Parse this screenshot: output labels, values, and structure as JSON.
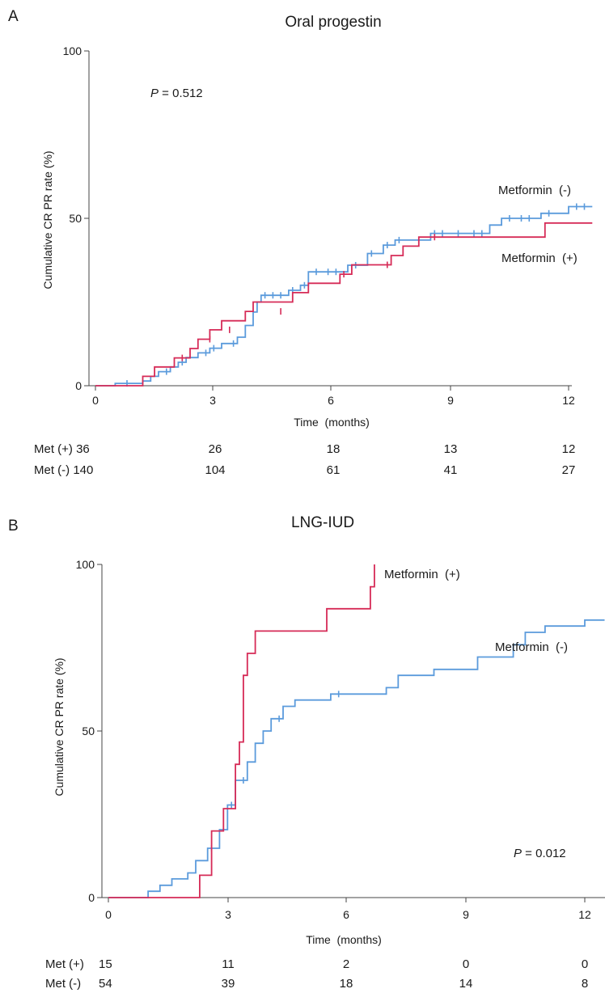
{
  "chart_data": [
    {
      "panel": "A",
      "type": "line",
      "title": "Oral progestin",
      "xlabel": "Time  (months)",
      "ylabel": "Cumulative CR PR rate (%)",
      "xlim": [
        0,
        12.6
      ],
      "ylim": [
        0,
        100
      ],
      "x_ticks": [
        "0",
        "3",
        "6",
        "9",
        "12"
      ],
      "y_ticks": [
        "0",
        "50",
        "100"
      ],
      "p_value": {
        "label": "P",
        "text": " = 0.512"
      },
      "series": [
        {
          "name": "Metformin (-)",
          "color": "#5b9bdc",
          "step": [
            [
              0,
              0
            ],
            [
              0.5,
              0
            ],
            [
              0.5,
              0.7
            ],
            [
              1.2,
              0.7
            ],
            [
              1.2,
              1.4
            ],
            [
              1.4,
              1.4
            ],
            [
              1.4,
              2.8
            ],
            [
              1.6,
              2.8
            ],
            [
              1.6,
              4.2
            ],
            [
              1.9,
              4.2
            ],
            [
              1.9,
              5.6
            ],
            [
              2.1,
              5.6
            ],
            [
              2.1,
              7
            ],
            [
              2.3,
              7
            ],
            [
              2.3,
              8.4
            ],
            [
              2.6,
              8.4
            ],
            [
              2.6,
              9.8
            ],
            [
              2.9,
              9.8
            ],
            [
              2.9,
              11.2
            ],
            [
              3.2,
              11.2
            ],
            [
              3.2,
              12.6
            ],
            [
              3.6,
              12.6
            ],
            [
              3.6,
              14.5
            ],
            [
              3.8,
              14.5
            ],
            [
              3.8,
              18
            ],
            [
              4.0,
              18
            ],
            [
              4.0,
              22
            ],
            [
              4.1,
              22
            ],
            [
              4.1,
              25
            ],
            [
              4.2,
              25
            ],
            [
              4.2,
              27
            ],
            [
              4.9,
              27
            ],
            [
              4.9,
              28.5
            ],
            [
              5.2,
              28.5
            ],
            [
              5.2,
              30
            ],
            [
              5.4,
              30
            ],
            [
              5.4,
              34
            ],
            [
              6.4,
              34
            ],
            [
              6.4,
              36
            ],
            [
              6.9,
              36
            ],
            [
              6.9,
              39.5
            ],
            [
              7.3,
              39.5
            ],
            [
              7.3,
              42
            ],
            [
              7.6,
              42
            ],
            [
              7.6,
              43.5
            ],
            [
              8.5,
              43.5
            ],
            [
              8.5,
              45.5
            ],
            [
              10.0,
              45.5
            ],
            [
              10.0,
              48
            ],
            [
              10.3,
              48
            ],
            [
              10.3,
              50
            ],
            [
              11.3,
              50
            ],
            [
              11.3,
              51.5
            ],
            [
              12.0,
              51.5
            ],
            [
              12.0,
              53.5
            ],
            [
              12.6,
              53.5
            ]
          ],
          "censored": [
            [
              0.8,
              0.7
            ],
            [
              1.8,
              4.2
            ],
            [
              2.2,
              7
            ],
            [
              2.8,
              9.8
            ],
            [
              3.0,
              11.2
            ],
            [
              3.5,
              12.6
            ],
            [
              4.3,
              27
            ],
            [
              4.5,
              27
            ],
            [
              4.7,
              27
            ],
            [
              5.0,
              28.5
            ],
            [
              5.3,
              30
            ],
            [
              5.6,
              34
            ],
            [
              5.9,
              34
            ],
            [
              6.1,
              34
            ],
            [
              6.6,
              36
            ],
            [
              7.0,
              39.5
            ],
            [
              7.4,
              42
            ],
            [
              7.7,
              43.5
            ],
            [
              8.6,
              45.5
            ],
            [
              8.8,
              45.5
            ],
            [
              9.2,
              45.5
            ],
            [
              9.6,
              45.5
            ],
            [
              9.8,
              45.5
            ],
            [
              10.5,
              50
            ],
            [
              10.8,
              50
            ],
            [
              11.0,
              50
            ],
            [
              11.5,
              51.5
            ],
            [
              12.2,
              53.5
            ],
            [
              12.4,
              53.5
            ]
          ]
        },
        {
          "name": "Metformin (+)",
          "color": "#d62b57",
          "step": [
            [
              0,
              0
            ],
            [
              1.2,
              0
            ],
            [
              1.2,
              2.8
            ],
            [
              1.5,
              2.8
            ],
            [
              1.5,
              5.6
            ],
            [
              2.0,
              5.6
            ],
            [
              2.0,
              8.3
            ],
            [
              2.4,
              8.3
            ],
            [
              2.4,
              11.1
            ],
            [
              2.6,
              11.1
            ],
            [
              2.6,
              13.9
            ],
            [
              2.9,
              13.9
            ],
            [
              2.9,
              16.7
            ],
            [
              3.2,
              16.7
            ],
            [
              3.2,
              19.4
            ],
            [
              3.8,
              19.4
            ],
            [
              3.8,
              22.2
            ],
            [
              4.0,
              22.2
            ],
            [
              4.0,
              25
            ],
            [
              5.0,
              25
            ],
            [
              5.0,
              27.8
            ],
            [
              5.4,
              27.8
            ],
            [
              5.4,
              30.6
            ],
            [
              6.2,
              30.6
            ],
            [
              6.2,
              33.3
            ],
            [
              6.5,
              33.3
            ],
            [
              6.5,
              36.1
            ],
            [
              7.5,
              36.1
            ],
            [
              7.5,
              38.9
            ],
            [
              7.8,
              38.9
            ],
            [
              7.8,
              41.7
            ],
            [
              8.2,
              41.7
            ],
            [
              8.2,
              44.4
            ],
            [
              11.4,
              44.4
            ],
            [
              11.4,
              48.6
            ],
            [
              12.6,
              48.6
            ]
          ],
          "censored": [
            [
              2.2,
              8.3
            ],
            [
              2.9,
              13.9
            ],
            [
              3.4,
              16.7
            ],
            [
              4.7,
              22.2
            ],
            [
              6.3,
              33.3
            ],
            [
              7.4,
              36.1
            ],
            [
              8.6,
              44.4
            ]
          ]
        }
      ],
      "series_labels": [
        "Metformin  (-)",
        "Metformin  (+)"
      ],
      "risk_table": [
        {
          "label": "Met (+) 36",
          "values": [
            "26",
            "18",
            "13",
            "12"
          ]
        },
        {
          "label": "Met (-) 140",
          "values": [
            "104",
            "61",
            "41",
            "27"
          ]
        }
      ]
    },
    {
      "panel": "B",
      "type": "line",
      "title": "LNG-IUD",
      "xlabel": "Time  (months)",
      "ylabel": "Cumulative CR PR rate (%)",
      "xlim": [
        0,
        12.5
      ],
      "ylim": [
        0,
        100
      ],
      "x_ticks": [
        "0",
        "3",
        "6",
        "9",
        "12"
      ],
      "y_ticks": [
        "0",
        "50",
        "100"
      ],
      "p_value": {
        "label": "P",
        "text": " = 0.012"
      },
      "series": [
        {
          "name": "Metformin (-)",
          "color": "#5b9bdc",
          "step": [
            [
              0,
              0
            ],
            [
              1.0,
              0
            ],
            [
              1.0,
              1.9
            ],
            [
              1.3,
              1.9
            ],
            [
              1.3,
              3.7
            ],
            [
              1.6,
              3.7
            ],
            [
              1.6,
              5.6
            ],
            [
              2.0,
              5.6
            ],
            [
              2.0,
              7.4
            ],
            [
              2.2,
              7.4
            ],
            [
              2.2,
              11.1
            ],
            [
              2.5,
              11.1
            ],
            [
              2.5,
              14.8
            ],
            [
              2.8,
              14.8
            ],
            [
              2.8,
              20.4
            ],
            [
              3.0,
              20.4
            ],
            [
              3.0,
              27.8
            ],
            [
              3.2,
              27.8
            ],
            [
              3.2,
              35.2
            ],
            [
              3.5,
              35.2
            ],
            [
              3.5,
              40.7
            ],
            [
              3.7,
              40.7
            ],
            [
              3.7,
              46.3
            ],
            [
              3.9,
              46.3
            ],
            [
              3.9,
              50
            ],
            [
              4.1,
              50
            ],
            [
              4.1,
              53.7
            ],
            [
              4.4,
              53.7
            ],
            [
              4.4,
              57.4
            ],
            [
              4.7,
              57.4
            ],
            [
              4.7,
              59.3
            ],
            [
              5.6,
              59.3
            ],
            [
              5.6,
              61.1
            ],
            [
              7.0,
              61.1
            ],
            [
              7.0,
              63
            ],
            [
              7.3,
              63
            ],
            [
              7.3,
              66.7
            ],
            [
              8.2,
              66.7
            ],
            [
              8.2,
              68.5
            ],
            [
              9.3,
              68.5
            ],
            [
              9.3,
              72.2
            ],
            [
              10.2,
              72.2
            ],
            [
              10.2,
              75.9
            ],
            [
              10.5,
              75.9
            ],
            [
              10.5,
              79.6
            ],
            [
              11.0,
              79.6
            ],
            [
              11.0,
              81.5
            ],
            [
              12.0,
              81.5
            ],
            [
              12.0,
              83.3
            ],
            [
              12.5,
              83.3
            ]
          ],
          "censored": [
            [
              2.6,
              14.8
            ],
            [
              3.1,
              27.8
            ],
            [
              3.4,
              35.2
            ],
            [
              4.3,
              53.7
            ],
            [
              5.8,
              61.1
            ]
          ]
        },
        {
          "name": "Metformin (+)",
          "color": "#d62b57",
          "step": [
            [
              0,
              0
            ],
            [
              2.3,
              0
            ],
            [
              2.3,
              6.7
            ],
            [
              2.6,
              6.7
            ],
            [
              2.6,
              20
            ],
            [
              2.9,
              20
            ],
            [
              2.9,
              26.7
            ],
            [
              3.2,
              26.7
            ],
            [
              3.2,
              40
            ],
            [
              3.3,
              40
            ],
            [
              3.3,
              46.7
            ],
            [
              3.4,
              46.7
            ],
            [
              3.4,
              66.7
            ],
            [
              3.5,
              66.7
            ],
            [
              3.5,
              73.3
            ],
            [
              3.7,
              73.3
            ],
            [
              3.7,
              80
            ],
            [
              5.5,
              80
            ],
            [
              5.5,
              86.7
            ],
            [
              6.6,
              86.7
            ],
            [
              6.6,
              93.3
            ],
            [
              6.7,
              93.3
            ],
            [
              6.7,
              100
            ]
          ],
          "censored": []
        }
      ],
      "series_labels": [
        "Metformin  (+)",
        "Metformin  (-)"
      ],
      "risk_table": [
        {
          "label": "Met (+)",
          "n0": "15",
          "values": [
            "11",
            "2",
            "0",
            "0"
          ]
        },
        {
          "label": "Met (-)",
          "n0": "54",
          "values": [
            "39",
            "18",
            "14",
            "8"
          ]
        }
      ]
    }
  ]
}
